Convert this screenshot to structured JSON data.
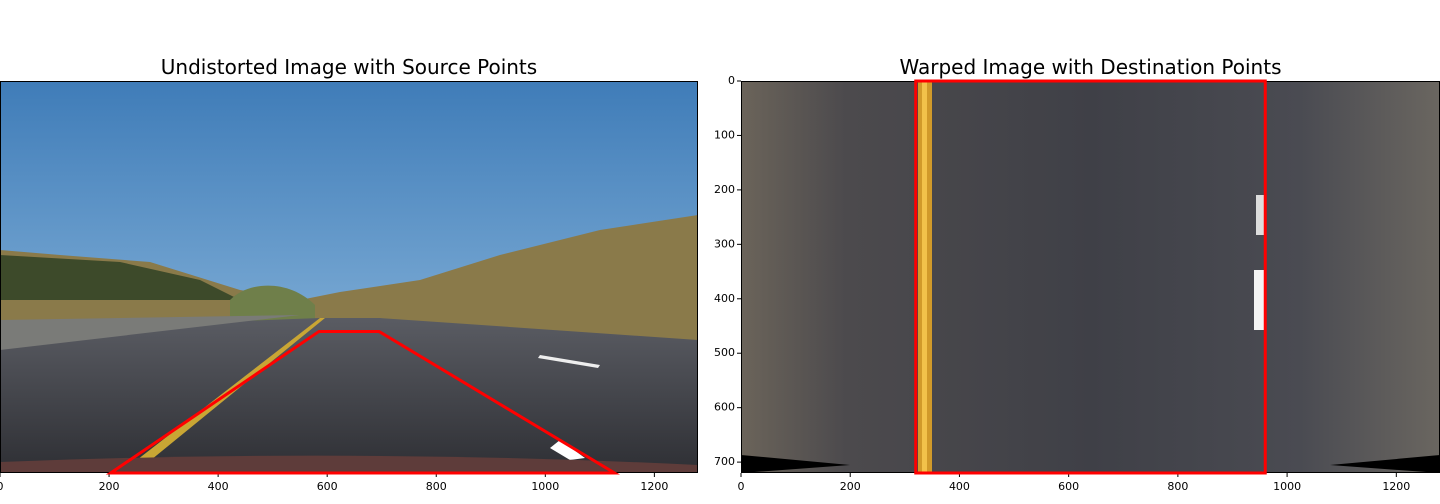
{
  "chart_data": [
    {
      "type": "image",
      "title": "Undistorted Image with Source Points",
      "xlim": [
        0,
        1280
      ],
      "ylim": [
        720,
        0
      ],
      "xticks": [
        0,
        200,
        400,
        600,
        800,
        1000,
        1200
      ],
      "x": [
        203,
        585,
        695,
        1127
      ],
      "y": [
        720,
        460,
        460,
        720
      ],
      "color": "#ff0000"
    },
    {
      "type": "image",
      "title": "Warped Image with Destination Points",
      "xlim": [
        0,
        1280
      ],
      "ylim": [
        720,
        0
      ],
      "xticks": [
        0,
        200,
        400,
        600,
        800,
        1000,
        1200
      ],
      "yticks": [
        0,
        100,
        200,
        300,
        400,
        500,
        600,
        700
      ],
      "x": [
        320,
        320,
        960,
        960
      ],
      "y": [
        720,
        0,
        0,
        720
      ],
      "color": "#ff0000"
    }
  ]
}
